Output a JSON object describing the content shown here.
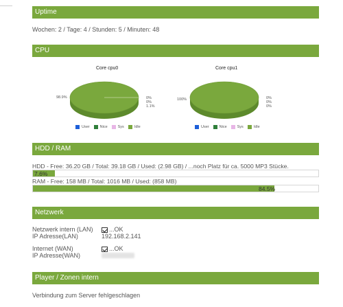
{
  "uptime": {
    "header": "Uptime",
    "text": "Wochen: 2 / Tage: 4 / Stunden: 5 / Minuten: 48"
  },
  "cpu": {
    "header": "CPU",
    "charts": [
      {
        "title": "Core cpu0",
        "left_label": "98.9%",
        "right_labels": [
          "0%",
          "0%",
          "1.1%"
        ],
        "legend": [
          "User",
          "Nice",
          "Sys",
          "Idle"
        ]
      },
      {
        "title": "Core cpu1",
        "left_label": "100%",
        "right_labels": [
          "0%",
          "0%",
          "0%"
        ],
        "legend": [
          "User",
          "Nice",
          "Sys",
          "Idle"
        ]
      }
    ],
    "legend_colors": [
      "#1e5fd8",
      "#2f7f3a",
      "#e8b6e6",
      "#7aa83d"
    ]
  },
  "hdd_ram": {
    "header": "HDD / RAM",
    "hdd_text": "HDD - Free: 36.20 GB / Total: 39.18 GB / Used: (2.98 GB) / ...noch Platz für ca. 5000 MP3 Stücke.",
    "hdd_percent_label": "7.6%",
    "hdd_percent": 7.6,
    "ram_text": "RAM - Free: 158 MB / Total: 1016 MB / Used: (858 MB)",
    "ram_percent_label": "84.5%",
    "ram_percent": 84.5
  },
  "network": {
    "header": "Netzwerk",
    "lan_label": "Netzwerk intern (LAN)",
    "lan_status": "...OK",
    "lan_ip_label": "IP Adresse(LAN)",
    "lan_ip": "192.168.2.141",
    "wan_label": "Internet (WAN)",
    "wan_status": "...OK",
    "wan_ip_label": "IP Adresse(WAN)"
  },
  "player": {
    "header": "Player / Zonen intern",
    "text": "Verbindung zum Server fehlgeschlagen"
  },
  "colors": {
    "accent": "#7aa83d",
    "pie_dark": "#5d8a2c"
  }
}
